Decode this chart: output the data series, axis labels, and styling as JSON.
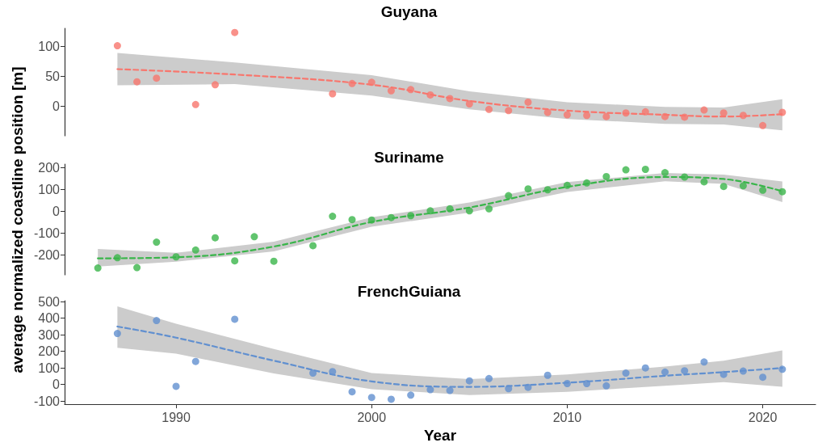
{
  "chart_data": [
    {
      "type": "scatter",
      "title": "Guyana",
      "xlim": [
        1984.3,
        2022.7
      ],
      "xticks": [
        1990,
        2000,
        2010,
        2020
      ],
      "ylim": [
        -49,
        130
      ],
      "yticks": [
        0,
        50,
        100
      ],
      "tick_labels": "y",
      "series": [
        {
          "type": "scatter",
          "marker": "circle",
          "color": "#f8766d",
          "x": [
            1987,
            1988,
            1989,
            1991,
            1992,
            1993,
            1998,
            1999,
            2000,
            2001,
            2002,
            2003,
            2004,
            2005,
            2006,
            2007,
            2008,
            2009,
            2010,
            2011,
            2012,
            2013,
            2014,
            2015,
            2016,
            2017,
            2018,
            2019,
            2020,
            2021
          ],
          "values": [
            101,
            41,
            47,
            3,
            36,
            123,
            21,
            38,
            40,
            26,
            28,
            19,
            13,
            4,
            -5,
            -7,
            7,
            -10,
            -14,
            -15,
            -17,
            -11,
            -9,
            -17,
            -18,
            -6,
            -11,
            -15,
            -32,
            -10
          ]
        },
        {
          "type": "line",
          "marker": "none",
          "line_style": "dashed",
          "color": "#f8766d",
          "x": [
            1987,
            1993,
            2000,
            2005,
            2010,
            2015,
            2018,
            2021
          ],
          "values": [
            62,
            53,
            36,
            9,
            -7,
            -14,
            -17,
            -13
          ],
          "lower": [
            35,
            37,
            18,
            -5,
            -21,
            -29,
            -30,
            -40
          ],
          "upper": [
            89,
            73,
            52,
            25,
            7,
            -1,
            -2,
            12
          ]
        }
      ]
    },
    {
      "type": "scatter",
      "title": "Suriname",
      "ylabel": "average normalized coastline position [m]",
      "xlim": [
        1984.3,
        2022.7
      ],
      "xticks": [
        1990,
        2000,
        2010,
        2020
      ],
      "ylim": [
        -290,
        215
      ],
      "yticks": [
        -200,
        -100,
        0,
        100,
        200
      ],
      "tick_labels": "y",
      "series": [
        {
          "type": "scatter",
          "marker": "circle",
          "color": "#39b54a",
          "x": [
            1986,
            1987,
            1988,
            1989,
            1990,
            1991,
            1992,
            1993,
            1994,
            1995,
            1997,
            1998,
            1999,
            2000,
            2001,
            2002,
            2003,
            2004,
            2005,
            2006,
            2007,
            2008,
            2009,
            2010,
            2011,
            2012,
            2013,
            2014,
            2015,
            2016,
            2017,
            2018,
            2019,
            2020,
            2021
          ],
          "values": [
            -259,
            -212,
            -257,
            -141,
            -208,
            -177,
            -121,
            -226,
            -116,
            -228,
            -157,
            -23,
            -38,
            -40,
            -29,
            -20,
            2,
            11,
            2,
            11,
            71,
            102,
            98,
            118,
            129,
            158,
            189,
            191,
            176,
            156,
            134,
            113,
            116,
            96,
            89
          ]
        },
        {
          "type": "line",
          "marker": "none",
          "line_style": "dashed",
          "color": "#39b54a",
          "x": [
            1986,
            1990,
            1995,
            2000,
            2005,
            2010,
            2015,
            2018,
            2021
          ],
          "values": [
            -215,
            -210,
            -161,
            -49,
            17,
            111,
            156,
            147,
            91
          ],
          "lower": [
            -252,
            -230,
            -183,
            -71,
            -6,
            88,
            137,
            125,
            42
          ],
          "upper": [
            -172,
            -190,
            -139,
            -27,
            40,
            133,
            174,
            167,
            136
          ]
        }
      ]
    },
    {
      "type": "scatter",
      "title": "FrenchGuiana",
      "xlabel": "Year",
      "xlim": [
        1984.3,
        2022.7
      ],
      "xticks": [
        1990,
        2000,
        2010,
        2020
      ],
      "ylim": [
        -119,
        506
      ],
      "yticks": [
        -100,
        0,
        100,
        200,
        300,
        400,
        500
      ],
      "series": [
        {
          "type": "scatter",
          "marker": "circle",
          "color": "#6190d0",
          "x": [
            1987,
            1989,
            1990,
            1991,
            1993,
            1997,
            1998,
            1999,
            2000,
            2001,
            2002,
            2003,
            2004,
            2005,
            2006,
            2007,
            2008,
            2009,
            2010,
            2011,
            2012,
            2013,
            2014,
            2015,
            2016,
            2017,
            2018,
            2019,
            2020,
            2021
          ],
          "values": [
            308,
            386,
            -11,
            139,
            394,
            69,
            78,
            -44,
            -78,
            -89,
            -64,
            -31,
            -36,
            22,
            36,
            -25,
            -17,
            56,
            6,
            6,
            -8,
            69,
            100,
            75,
            83,
            136,
            61,
            81,
            44,
            92
          ]
        },
        {
          "type": "line",
          "marker": "none",
          "line_style": "dashed",
          "color": "#6190d0",
          "x": [
            1987,
            1990,
            1995,
            2000,
            2005,
            2010,
            2015,
            2018,
            2021
          ],
          "values": [
            350,
            283,
            144,
            19,
            -14,
            11,
            53,
            75,
            100
          ],
          "lower": [
            222,
            186,
            67,
            -28,
            -64,
            -44,
            -8,
            14,
            -14
          ],
          "upper": [
            472,
            367,
            214,
            69,
            33,
            61,
            108,
            144,
            206
          ]
        }
      ]
    }
  ]
}
